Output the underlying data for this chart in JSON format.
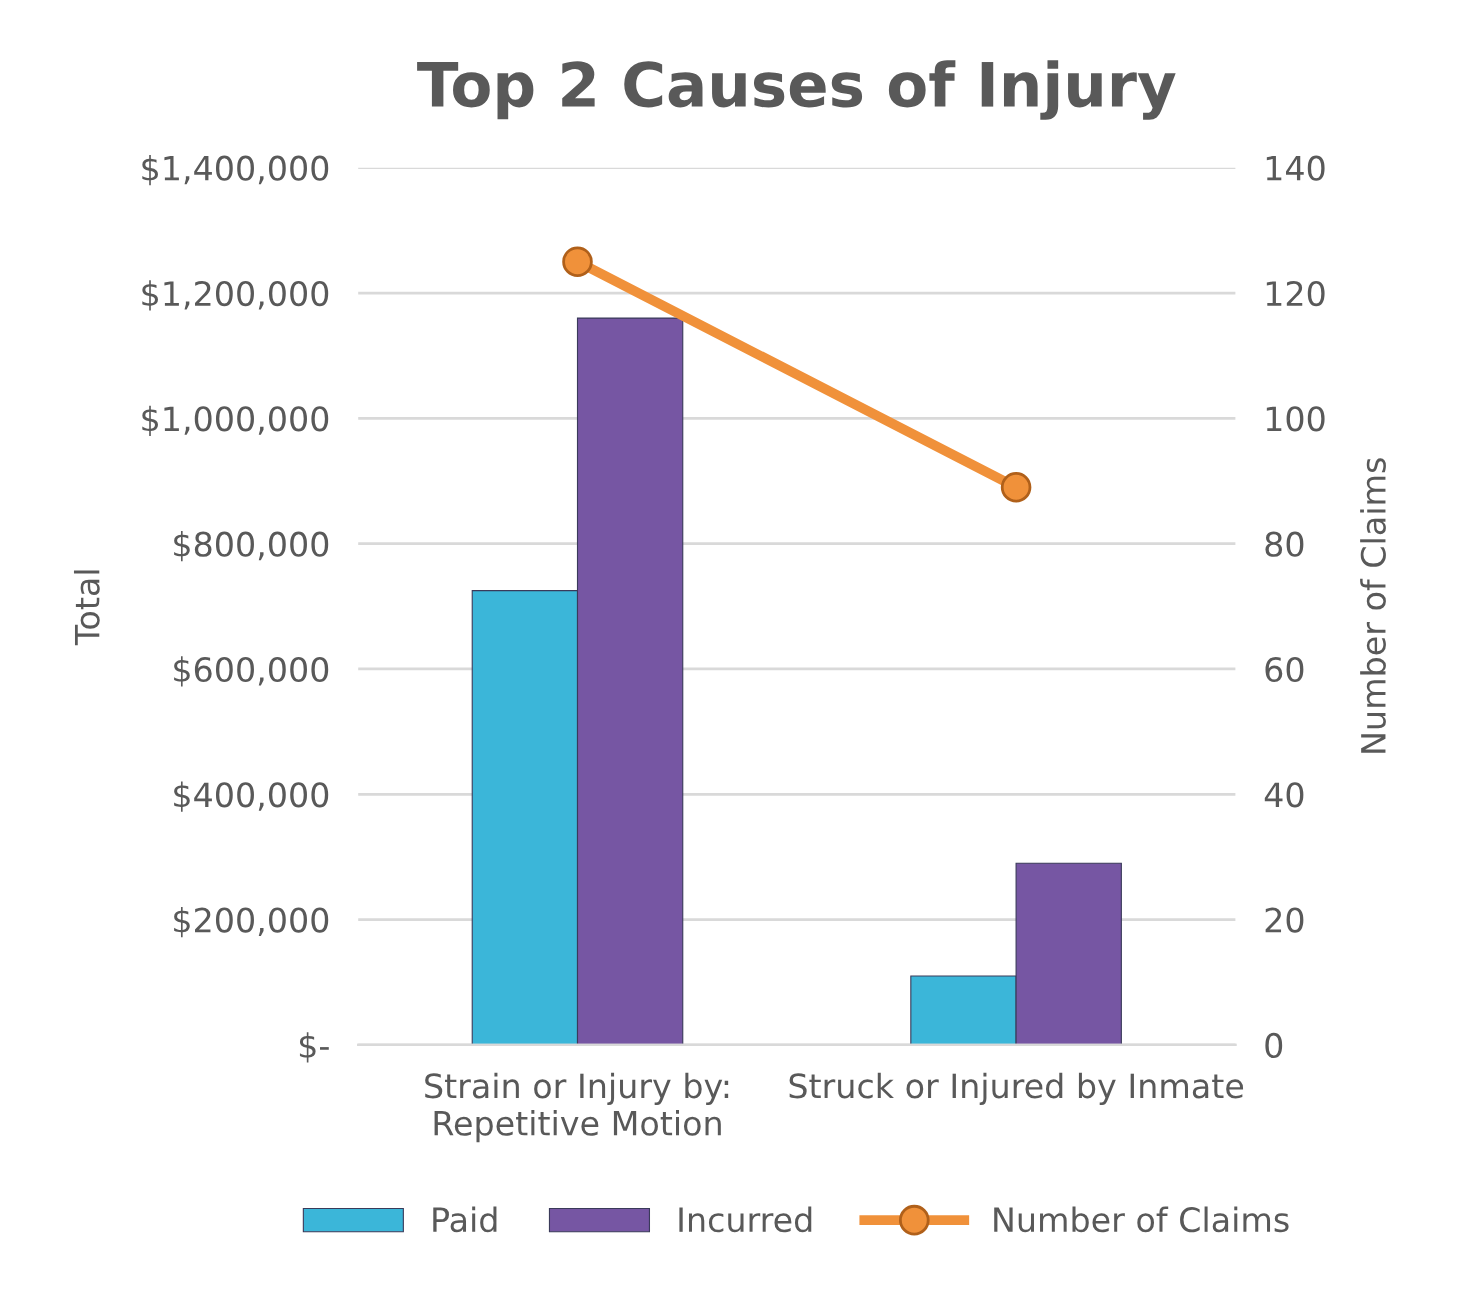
{
  "chart_data": {
    "type": "bar",
    "title": "Top 2 Causes of Injury",
    "categories": [
      "Strain or Injury by:\nRepetitive Motion",
      "Struck or Injured by Inmate"
    ],
    "series": [
      {
        "name": "Paid",
        "color": "#3bb6d9",
        "values": [
          725000,
          110000
        ]
      },
      {
        "name": "Incurred",
        "color": "#7656a3",
        "values": [
          1160000,
          290000
        ]
      },
      {
        "name": "Number of Claims",
        "type": "line",
        "axis": "y2",
        "color": "#f0913a",
        "marker": "circle",
        "values": [
          125,
          89
        ]
      }
    ],
    "ylabel": "Total",
    "y2label": "Number of Claims",
    "ylim": [
      0,
      1400000
    ],
    "yticks": [
      {
        "value": 0,
        "label": "$-"
      },
      {
        "value": 200000,
        "label": "$200,000"
      },
      {
        "value": 400000,
        "label": "$400,000"
      },
      {
        "value": 600000,
        "label": "$600,000"
      },
      {
        "value": 800000,
        "label": "$800,000"
      },
      {
        "value": 1000000,
        "label": "$1,000,000"
      },
      {
        "value": 1200000,
        "label": "$1,200,000"
      },
      {
        "value": 1400000,
        "label": "$1,400,000"
      }
    ],
    "y2lim": [
      0,
      140
    ],
    "y2ticks": [
      0,
      20,
      40,
      60,
      80,
      100,
      120,
      140
    ],
    "grid": "y",
    "legend": "bottom"
  }
}
